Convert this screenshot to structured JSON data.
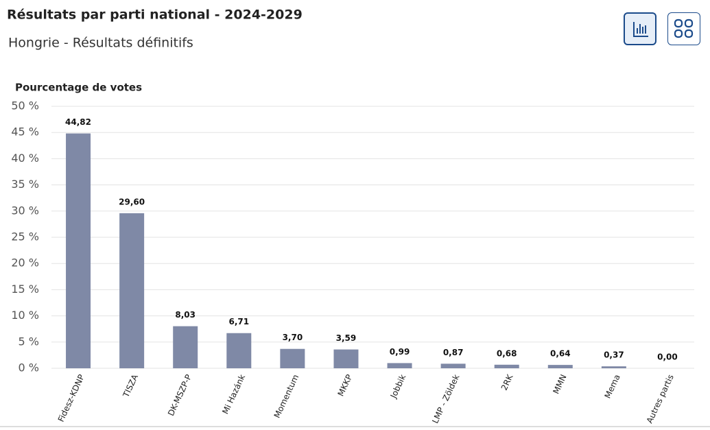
{
  "chart_data": {
    "type": "bar",
    "title": "Résultats par parti national - 2024-2029",
    "subtitle": "Hongrie - Résultats définitifs",
    "y_label": "Pourcentage de votes",
    "categories": [
      "Fidesz-KDNP",
      "TISZA",
      "DK-MSZP-P",
      "Mi Hazánk",
      "Momentum",
      "MKKP",
      "Jobbik",
      "LMP - Zöldek",
      "2RK",
      "MMN",
      "Mema",
      "Autres partis"
    ],
    "values": [
      44.82,
      29.6,
      8.03,
      6.71,
      3.7,
      3.59,
      0.99,
      0.87,
      0.68,
      0.64,
      0.37,
      0.0
    ],
    "value_labels": [
      "44,82",
      "29,60",
      "8,03",
      "6,71",
      "3,70",
      "3,59",
      "0,99",
      "0,87",
      "0,68",
      "0,64",
      "0,37",
      "0,00"
    ],
    "color": "#7f89a6",
    "ylim": [
      0,
      50
    ],
    "yticks": [
      {
        "value": 0,
        "label": "0 %"
      },
      {
        "value": 5,
        "label": "5 %"
      },
      {
        "value": 10,
        "label": "10 %"
      },
      {
        "value": 15,
        "label": "15 %"
      },
      {
        "value": 20,
        "label": "20 %"
      },
      {
        "value": 25,
        "label": "25 %"
      },
      {
        "value": 30,
        "label": "30 %"
      },
      {
        "value": 35,
        "label": "35 %"
      },
      {
        "value": 40,
        "label": "40 %"
      },
      {
        "value": 45,
        "label": "45 %"
      },
      {
        "value": 50,
        "label": "50 %"
      }
    ],
    "grid": true
  }
}
